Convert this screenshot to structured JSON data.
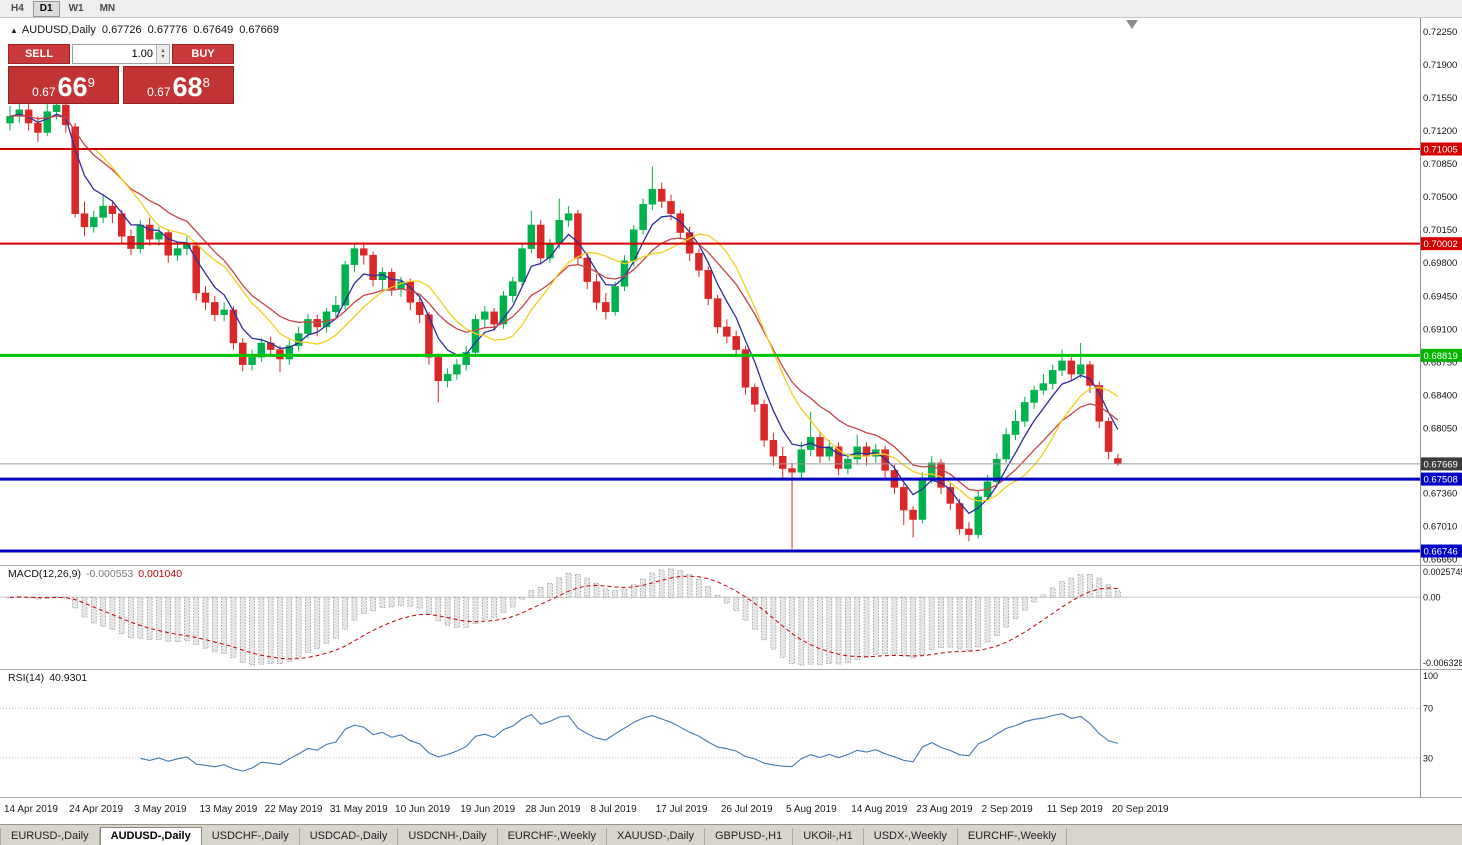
{
  "toolbar": {
    "timeframes": [
      "H4",
      "D1",
      "W1",
      "MN"
    ],
    "active_timeframe": "D1"
  },
  "chart_header": {
    "symbol": "AUDUSD,Daily",
    "open": "0.67726",
    "high": "0.67776",
    "low": "0.67649",
    "close": "0.67669"
  },
  "trade_panel": {
    "sell_label": "SELL",
    "buy_label": "BUY",
    "volume": "1.00",
    "bid_main": "0.67",
    "bid_big": "66",
    "bid_sup": "9",
    "ask_main": "0.67",
    "ask_big": "68",
    "ask_sup": "8",
    "panel_color": "#c23434"
  },
  "price_axis": {
    "ticks": [
      "0.72250",
      "0.71900",
      "0.71550",
      "0.71200",
      "0.70850",
      "0.70500",
      "0.70150",
      "0.69800",
      "0.69450",
      "0.69100",
      "0.68750",
      "0.68400",
      "0.68050",
      "0.67700",
      "0.67360",
      "0.67010",
      "0.66660"
    ],
    "tags": [
      {
        "label": "0.71005",
        "price": 0.71005,
        "bg": "#d40000"
      },
      {
        "label": "0.70002",
        "price": 0.70002,
        "bg": "#d40000"
      },
      {
        "label": "0.68819",
        "price": 0.68819,
        "bg": "#00b400"
      },
      {
        "label": "0.67508",
        "price": 0.67508,
        "bg": "#0000c4"
      },
      {
        "label": "0.66746",
        "price": 0.66746,
        "bg": "#0000c4"
      }
    ]
  },
  "levels": [
    {
      "price": 0.71005,
      "color": "#d40000",
      "width": 2
    },
    {
      "price": 0.70002,
      "color": "#d40000",
      "width": 2
    },
    {
      "price": 0.68819,
      "color": "#00c400",
      "width": 3
    },
    {
      "price": 0.67508,
      "color": "#0000c4",
      "width": 3
    },
    {
      "price": 0.66746,
      "color": "#0000c4",
      "width": 3
    }
  ],
  "current_price": {
    "label": "0.67669",
    "price": 0.67669,
    "line_color": "#9b9b9b",
    "tag_bg": "#3c3c3c"
  },
  "chart_data": {
    "type": "candlestick",
    "title": "AUDUSD Daily",
    "up_color": "#00b14d",
    "down_color": "#da2727",
    "y_axis_range": [
      0.6663,
      0.7229
    ],
    "x_label_every": 7,
    "x_labels": [
      "14 Apr 2019",
      "24 Apr 2019",
      "3 May 2019",
      "13 May 2019",
      "22 May 2019",
      "31 May 2019",
      "10 Jun 2019",
      "19 Jun 2019",
      "28 Jun 2019",
      "8 Jul 2019",
      "17 Jul 2019",
      "26 Jul 2019",
      "5 Aug 2019",
      "14 Aug 2019",
      "23 Aug 2019",
      "2 Sep 2019",
      "11 Sep 2019",
      "20 Sep 2019"
    ],
    "moving_averages": [
      {
        "name": "ma-fast",
        "period": 5,
        "type": "ema",
        "color": "#2b2e9e"
      },
      {
        "name": "ma-medium",
        "period": 13,
        "type": "ema",
        "color": "#c84448"
      },
      {
        "name": "ma-slow",
        "period": 10,
        "type": "sma",
        "color": "#f0d020"
      }
    ],
    "candles": [
      [
        0.7128,
        0.7146,
        0.712,
        0.7135
      ],
      [
        0.7135,
        0.715,
        0.7128,
        0.7142
      ],
      [
        0.7142,
        0.7148,
        0.712,
        0.7128
      ],
      [
        0.7128,
        0.7135,
        0.7108,
        0.7118
      ],
      [
        0.7118,
        0.7148,
        0.7114,
        0.714
      ],
      [
        0.714,
        0.7153,
        0.7132,
        0.7147
      ],
      [
        0.7147,
        0.715,
        0.7118,
        0.7126
      ],
      [
        0.7124,
        0.7128,
        0.7028,
        0.7032
      ],
      [
        0.7032,
        0.7045,
        0.7008,
        0.7018
      ],
      [
        0.7018,
        0.7035,
        0.7012,
        0.7028
      ],
      [
        0.7028,
        0.7053,
        0.7022,
        0.704
      ],
      [
        0.704,
        0.7046,
        0.7022,
        0.7032
      ],
      [
        0.7032,
        0.7036,
        0.7,
        0.7008
      ],
      [
        0.7008,
        0.7015,
        0.6988,
        0.6995
      ],
      [
        0.6995,
        0.7025,
        0.699,
        0.702
      ],
      [
        0.702,
        0.7028,
        0.6998,
        0.7005
      ],
      [
        0.7005,
        0.7018,
        0.6998,
        0.7012
      ],
      [
        0.7012,
        0.7015,
        0.698,
        0.6988
      ],
      [
        0.6988,
        0.7,
        0.6982,
        0.6995
      ],
      [
        0.6995,
        0.7008,
        0.6988,
        0.7
      ],
      [
        0.6998,
        0.7002,
        0.694,
        0.6948
      ],
      [
        0.6948,
        0.6955,
        0.693,
        0.6938
      ],
      [
        0.6938,
        0.6945,
        0.6918,
        0.6925
      ],
      [
        0.6925,
        0.6938,
        0.6918,
        0.693
      ],
      [
        0.693,
        0.6934,
        0.6888,
        0.6895
      ],
      [
        0.6895,
        0.69,
        0.6865,
        0.6872
      ],
      [
        0.6872,
        0.6888,
        0.6866,
        0.688
      ],
      [
        0.688,
        0.69,
        0.6875,
        0.6895
      ],
      [
        0.6895,
        0.6902,
        0.688,
        0.6888
      ],
      [
        0.6888,
        0.6892,
        0.6864,
        0.6878
      ],
      [
        0.6878,
        0.6898,
        0.6872,
        0.6892
      ],
      [
        0.6892,
        0.6912,
        0.6886,
        0.6905
      ],
      [
        0.6905,
        0.6926,
        0.69,
        0.692
      ],
      [
        0.692,
        0.6925,
        0.6902,
        0.6912
      ],
      [
        0.6912,
        0.6932,
        0.6906,
        0.6928
      ],
      [
        0.6928,
        0.6945,
        0.6922,
        0.6935
      ],
      [
        0.6935,
        0.6982,
        0.693,
        0.6978
      ],
      [
        0.6978,
        0.7,
        0.697,
        0.6995
      ],
      [
        0.6995,
        0.7002,
        0.6978,
        0.6988
      ],
      [
        0.6988,
        0.6992,
        0.6955,
        0.6962
      ],
      [
        0.6962,
        0.6975,
        0.6952,
        0.697
      ],
      [
        0.697,
        0.6974,
        0.6945,
        0.6952
      ],
      [
        0.6952,
        0.6965,
        0.6944,
        0.696
      ],
      [
        0.696,
        0.6963,
        0.693,
        0.6938
      ],
      [
        0.6938,
        0.6944,
        0.6916,
        0.6925
      ],
      [
        0.6925,
        0.6928,
        0.6872,
        0.688
      ],
      [
        0.688,
        0.6884,
        0.6832,
        0.6855
      ],
      [
        0.6855,
        0.6868,
        0.6848,
        0.6862
      ],
      [
        0.6862,
        0.6878,
        0.6856,
        0.6872
      ],
      [
        0.6872,
        0.6892,
        0.6866,
        0.6885
      ],
      [
        0.6885,
        0.6925,
        0.688,
        0.692
      ],
      [
        0.692,
        0.6934,
        0.6912,
        0.6928
      ],
      [
        0.6928,
        0.6932,
        0.6908,
        0.6915
      ],
      [
        0.6915,
        0.695,
        0.691,
        0.6945
      ],
      [
        0.6945,
        0.6965,
        0.6938,
        0.696
      ],
      [
        0.696,
        0.7,
        0.6955,
        0.6995
      ],
      [
        0.6995,
        0.7035,
        0.699,
        0.702
      ],
      [
        0.702,
        0.7025,
        0.6978,
        0.6985
      ],
      [
        0.6985,
        0.7005,
        0.698,
        0.7
      ],
      [
        0.7,
        0.7048,
        0.6995,
        0.7025
      ],
      [
        0.7025,
        0.704,
        0.7018,
        0.7032
      ],
      [
        0.7032,
        0.7036,
        0.6978,
        0.6985
      ],
      [
        0.6985,
        0.699,
        0.6952,
        0.696
      ],
      [
        0.696,
        0.6968,
        0.693,
        0.6938
      ],
      [
        0.6938,
        0.6948,
        0.692,
        0.6928
      ],
      [
        0.6928,
        0.696,
        0.6924,
        0.6955
      ],
      [
        0.6955,
        0.6988,
        0.695,
        0.6982
      ],
      [
        0.6982,
        0.702,
        0.6976,
        0.7015
      ],
      [
        0.7015,
        0.7048,
        0.701,
        0.7042
      ],
      [
        0.7042,
        0.7082,
        0.7036,
        0.7058
      ],
      [
        0.7058,
        0.7065,
        0.7038,
        0.7045
      ],
      [
        0.7045,
        0.7052,
        0.7025,
        0.7032
      ],
      [
        0.7032,
        0.7036,
        0.7005,
        0.7012
      ],
      [
        0.7012,
        0.7018,
        0.6982,
        0.699
      ],
      [
        0.699,
        0.6995,
        0.6965,
        0.6972
      ],
      [
        0.6972,
        0.6976,
        0.6935,
        0.6942
      ],
      [
        0.6942,
        0.6946,
        0.6905,
        0.6912
      ],
      [
        0.6912,
        0.692,
        0.6895,
        0.6902
      ],
      [
        0.6902,
        0.6908,
        0.688,
        0.6888
      ],
      [
        0.6888,
        0.6892,
        0.684,
        0.6848
      ],
      [
        0.6848,
        0.6852,
        0.6822,
        0.683
      ],
      [
        0.683,
        0.6835,
        0.6785,
        0.6792
      ],
      [
        0.6792,
        0.68,
        0.6765,
        0.6775
      ],
      [
        0.6775,
        0.6785,
        0.6752,
        0.6762
      ],
      [
        0.6762,
        0.6768,
        0.6677,
        0.6758
      ],
      [
        0.6758,
        0.679,
        0.675,
        0.6782
      ],
      [
        0.6782,
        0.6822,
        0.6775,
        0.6795
      ],
      [
        0.6795,
        0.68,
        0.6768,
        0.6775
      ],
      [
        0.6775,
        0.6792,
        0.677,
        0.6785
      ],
      [
        0.6785,
        0.679,
        0.6755,
        0.6762
      ],
      [
        0.6762,
        0.6778,
        0.6756,
        0.6772
      ],
      [
        0.6772,
        0.6798,
        0.6766,
        0.6785
      ],
      [
        0.6785,
        0.679,
        0.6765,
        0.6775
      ],
      [
        0.6775,
        0.6788,
        0.6768,
        0.6782
      ],
      [
        0.6782,
        0.6786,
        0.6752,
        0.676
      ],
      [
        0.676,
        0.6766,
        0.6735,
        0.6742
      ],
      [
        0.6742,
        0.6746,
        0.6702,
        0.6718
      ],
      [
        0.6718,
        0.6722,
        0.6689,
        0.6708
      ],
      [
        0.6708,
        0.6758,
        0.6704,
        0.6752
      ],
      [
        0.6752,
        0.6775,
        0.6746,
        0.6768
      ],
      [
        0.6768,
        0.6772,
        0.6735,
        0.6742
      ],
      [
        0.6742,
        0.6748,
        0.6718,
        0.6725
      ],
      [
        0.6725,
        0.673,
        0.6692,
        0.6698
      ],
      [
        0.6698,
        0.6705,
        0.6685,
        0.6692
      ],
      [
        0.6692,
        0.6738,
        0.6688,
        0.6732
      ],
      [
        0.6732,
        0.6755,
        0.6728,
        0.6748
      ],
      [
        0.6748,
        0.6778,
        0.6744,
        0.6772
      ],
      [
        0.6772,
        0.6805,
        0.6768,
        0.6798
      ],
      [
        0.6798,
        0.6824,
        0.6792,
        0.6812
      ],
      [
        0.6812,
        0.6838,
        0.6806,
        0.6832
      ],
      [
        0.6832,
        0.685,
        0.6825,
        0.6845
      ],
      [
        0.6845,
        0.6862,
        0.684,
        0.6852
      ],
      [
        0.6852,
        0.6872,
        0.6846,
        0.6866
      ],
      [
        0.6866,
        0.6888,
        0.686,
        0.6876
      ],
      [
        0.6876,
        0.688,
        0.6855,
        0.6862
      ],
      [
        0.6862,
        0.6895,
        0.6858,
        0.6872
      ],
      [
        0.6872,
        0.6876,
        0.6842,
        0.685
      ],
      [
        0.685,
        0.6854,
        0.6805,
        0.6812
      ],
      [
        0.6812,
        0.6816,
        0.6772,
        0.678
      ],
      [
        0.67726,
        0.67776,
        0.67649,
        0.67669
      ]
    ]
  },
  "macd": {
    "label": "MACD(12,26,9)",
    "value_main": "-0.000553",
    "value_signal": "0.001040",
    "fast": 12,
    "slow": 26,
    "signal": 9,
    "axis": {
      "max": "0.0025745",
      "zero": "0.00",
      "min": "-0.0063286"
    },
    "hist_fill": "#e6e6e6",
    "hist_stroke": "#8f8f8f",
    "signal_color": "#c40000"
  },
  "rsi": {
    "label": "RSI(14)",
    "value": "40.9301",
    "period": 14,
    "levels": [
      "100",
      "70",
      "30"
    ],
    "level_values": [
      100,
      70,
      30
    ],
    "line_color": "#4579b2"
  },
  "tabs": {
    "items": [
      "EURUSD-,Daily",
      "AUDUSD-,Daily",
      "USDCHF-,Daily",
      "USDCAD-,Daily",
      "USDCNH-,Daily",
      "EURCHF-,Weekly",
      "XAUUSD-,Daily",
      "GBPUSD-,H1",
      "UKOil-,H1",
      "USDX-,Weekly",
      "EURCHF-,Weekly"
    ],
    "active_index": 1
  }
}
